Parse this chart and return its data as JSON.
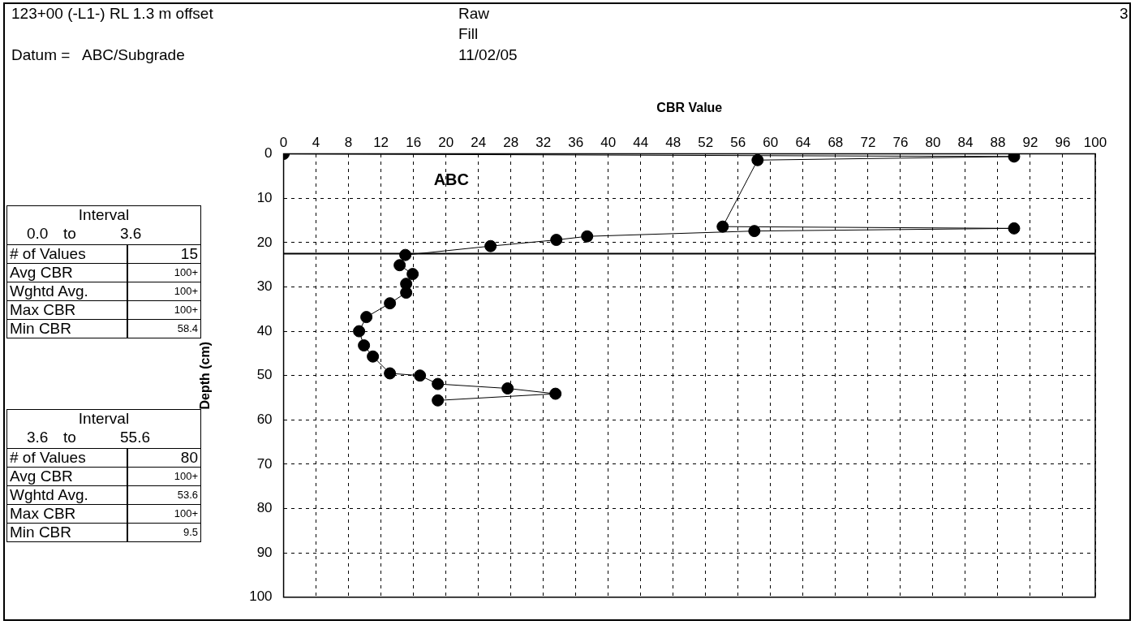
{
  "chart_data": {
    "type": "line",
    "title": "123+00 (-L1-) RL 1.3 m offset",
    "xlabel": "CBR Value",
    "ylabel": "Depth (cm)",
    "x": [
      0,
      90,
      58.4,
      54.1,
      90,
      58,
      37.4,
      33.6,
      25.5,
      15,
      14.3,
      15.9,
      15.1,
      15.1,
      13.1,
      10.2,
      9.3,
      9.9,
      11,
      13.1,
      16.8,
      19,
      27.6,
      33.5,
      19
    ],
    "series": [
      {
        "color": "#000000",
        "values": [
          0,
          0.6,
          1.4,
          16.4,
          16.8,
          17.4,
          18.6,
          19.4,
          20.8,
          22.8,
          25.1,
          27.1,
          29.3,
          31.3,
          33.7,
          36.8,
          40,
          43.2,
          45.7,
          49.5,
          50,
          51.9,
          52.9,
          54.1,
          55.6
        ]
      }
    ],
    "xlim": [
      0,
      100
    ],
    "xticks": [
      0,
      4,
      8,
      12,
      16,
      20,
      24,
      28,
      32,
      36,
      40,
      44,
      48,
      52,
      56,
      60,
      64,
      68,
      72,
      76,
      80,
      84,
      88,
      92,
      96,
      100
    ],
    "ylim": [
      100,
      0
    ],
    "yticks": [
      0,
      10,
      20,
      30,
      40,
      50,
      60,
      70,
      80,
      90,
      100
    ],
    "grid": true,
    "legend": false,
    "marker": "circle",
    "line_style": "solid",
    "ref_lines": [
      {
        "axis": "y",
        "value": 22.5,
        "color": "#000000"
      }
    ],
    "annotations": [
      "Raw",
      "Fill",
      "Datum =",
      "ABC/Subgrade",
      "11/02/05",
      "3",
      "ABC",
      "Interval",
      "0.0",
      "to",
      "3.6",
      "# of Values",
      "15",
      "Avg CBR",
      "100+",
      "Wghtd Avg.",
      "100+",
      "Max CBR",
      "100+",
      "Min CBR",
      "58.4",
      "Interval",
      "3.6",
      "to",
      "55.6",
      "# of Values",
      "80",
      "Avg CBR",
      "100+",
      "Wghtd Avg.",
      "53.6",
      "Max CBR",
      "100+",
      "Min CBR",
      "9.5"
    ]
  }
}
